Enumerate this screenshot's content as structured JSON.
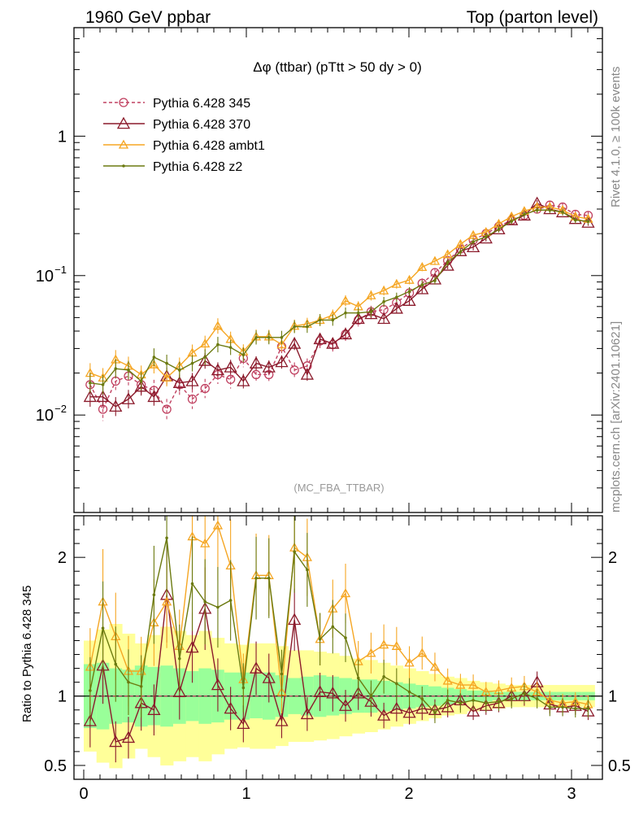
{
  "header": {
    "left": "1960 GeV ppbar",
    "right": "Top (parton level)"
  },
  "side_labels": {
    "rivet": "Rivet 4.1.0, ≥ 100k events",
    "mcplots": "mcplots.cern.ch [arXiv:2401.10621]"
  },
  "chart_data": {
    "type": "line",
    "title": "Δφ (ttbar) (pTtt > 50 dy > 0)",
    "analysis": "(MC_FBA_TTBAR)",
    "xlim": [
      -0.05,
      3.2
    ],
    "x_ticks": [
      "0",
      "1",
      "2",
      "3"
    ],
    "x_tick_values": [
      0,
      1,
      2,
      3
    ],
    "main": {
      "yscale": "log",
      "ylim": [
        0.002,
        6
      ],
      "y_ticks": [
        {
          "label_base": "10",
          "label_exp": "−2",
          "value": 0.01
        },
        {
          "label_base": "10",
          "label_exp": "−1",
          "value": 0.1
        },
        {
          "label_base": "1",
          "label_exp": "",
          "value": 1
        }
      ]
    },
    "ratio": {
      "ylabel": "Ratio to Pythia 6.428 345",
      "ylim": [
        0.4,
        2.3
      ],
      "y_ticks": [
        "0.5",
        "1",
        "2"
      ],
      "y_tick_values": [
        0.5,
        1,
        2
      ],
      "band_inner_half": [
        0.23,
        0.24,
        0.2,
        0.19,
        0.22,
        0.21,
        0.22,
        0.2,
        0.18,
        0.2,
        0.19,
        0.17,
        0.17,
        0.16,
        0.17,
        0.15,
        0.13,
        0.14,
        0.15,
        0.14,
        0.13,
        0.12,
        0.12,
        0.11,
        0.1,
        0.09,
        0.08,
        0.07,
        0.06,
        0.05,
        0.04,
        0.04,
        0.03,
        0.03,
        0.03,
        0.03,
        0.03,
        0.03,
        0.03,
        0.03
      ],
      "band_outer_half": [
        0.4,
        0.48,
        0.52,
        0.45,
        0.38,
        0.44,
        0.5,
        0.47,
        0.44,
        0.47,
        0.42,
        0.38,
        0.37,
        0.38,
        0.38,
        0.36,
        0.33,
        0.33,
        0.32,
        0.31,
        0.29,
        0.27,
        0.26,
        0.24,
        0.22,
        0.2,
        0.18,
        0.16,
        0.14,
        0.13,
        0.11,
        0.1,
        0.09,
        0.08,
        0.08,
        0.08,
        0.08,
        0.08,
        0.08,
        0.08
      ]
    },
    "x": [
      0.0393,
      0.1178,
      0.1963,
      0.2749,
      0.3534,
      0.432,
      0.5105,
      0.589,
      0.6676,
      0.7461,
      0.8247,
      0.9032,
      0.9817,
      1.0603,
      1.1388,
      1.2174,
      1.2959,
      1.3744,
      1.453,
      1.5315,
      1.6101,
      1.6886,
      1.7671,
      1.8457,
      1.9242,
      2.0028,
      2.0813,
      2.1598,
      2.2384,
      2.3169,
      2.3955,
      2.474,
      2.5525,
      2.6311,
      2.7096,
      2.7882,
      2.8667,
      2.9452,
      3.0238,
      3.1023
    ],
    "series": [
      {
        "name": "Pythia 6.428 345",
        "color": "#c04060",
        "dashed": true,
        "marker": "circle",
        "values": [
          0.0165,
          0.011,
          0.0175,
          0.019,
          0.0165,
          0.015,
          0.011,
          0.0165,
          0.013,
          0.0155,
          0.0195,
          0.018,
          0.0255,
          0.0195,
          0.0195,
          0.031,
          0.021,
          0.0225,
          0.034,
          0.032,
          0.038,
          0.048,
          0.055,
          0.057,
          0.064,
          0.075,
          0.088,
          0.105,
          0.128,
          0.155,
          0.18,
          0.2,
          0.225,
          0.25,
          0.27,
          0.3,
          0.32,
          0.31,
          0.275,
          0.27
        ],
        "ratio": [
          1,
          1,
          1,
          1,
          1,
          1,
          1,
          1,
          1,
          1,
          1,
          1,
          1,
          1,
          1,
          1,
          1,
          1,
          1,
          1,
          1,
          1,
          1,
          1,
          1,
          1,
          1,
          1,
          1,
          1,
          1,
          1,
          1,
          1,
          1,
          1,
          1,
          1,
          1,
          1
        ]
      },
      {
        "name": "Pythia 6.428 370",
        "color": "#8b1a2b",
        "dashed": false,
        "marker": "triangle-open",
        "values": [
          0.0135,
          0.0135,
          0.0115,
          0.013,
          0.016,
          0.0135,
          0.019,
          0.017,
          0.0175,
          0.0245,
          0.021,
          0.022,
          0.0175,
          0.0235,
          0.022,
          0.024,
          0.0325,
          0.0195,
          0.035,
          0.0325,
          0.038,
          0.049,
          0.053,
          0.049,
          0.058,
          0.066,
          0.08,
          0.094,
          0.118,
          0.15,
          0.16,
          0.185,
          0.215,
          0.25,
          0.27,
          0.33,
          0.3,
          0.285,
          0.255,
          0.24
        ],
        "ratio": [
          0.82,
          1.22,
          0.67,
          0.7,
          0.95,
          0.9,
          1.73,
          1.03,
          1.35,
          1.63,
          1.08,
          0.91,
          0.8,
          1.2,
          1.13,
          0.82,
          1.55,
          0.87,
          1.03,
          1.02,
          0.93,
          1.02,
          0.96,
          0.86,
          0.91,
          0.88,
          0.91,
          0.9,
          0.92,
          0.97,
          0.89,
          0.93,
          0.95,
          1.0,
          1.0,
          1.1,
          0.94,
          0.92,
          0.93,
          0.89
        ]
      },
      {
        "name": "Pythia 6.428 ambt1",
        "color": "#f5a623",
        "dashed": false,
        "marker": "triangle-open",
        "values": [
          0.02,
          0.0185,
          0.025,
          0.0225,
          0.0195,
          0.023,
          0.0185,
          0.0225,
          0.028,
          0.0325,
          0.0435,
          0.035,
          0.0285,
          0.0365,
          0.0365,
          0.032,
          0.0435,
          0.045,
          0.048,
          0.052,
          0.066,
          0.06,
          0.072,
          0.078,
          0.087,
          0.093,
          0.115,
          0.127,
          0.142,
          0.168,
          0.195,
          0.205,
          0.235,
          0.265,
          0.29,
          0.31,
          0.31,
          0.295,
          0.265,
          0.255
        ],
        "ratio": [
          1.21,
          1.68,
          1.43,
          1.18,
          1.18,
          1.53,
          1.68,
          1.36,
          2.15,
          2.1,
          2.23,
          1.94,
          1.12,
          1.87,
          1.87,
          1.03,
          2.07,
          2.0,
          1.41,
          1.63,
          1.74,
          1.25,
          1.31,
          1.37,
          1.36,
          1.24,
          1.31,
          1.21,
          1.11,
          1.08,
          1.08,
          1.03,
          1.04,
          1.06,
          1.07,
          1.03,
          0.97,
          0.95,
          0.96,
          0.94
        ]
      },
      {
        "name": "Pythia 6.428 z2",
        "color": "#6b7a10",
        "dashed": false,
        "marker": "dot",
        "values": [
          0.017,
          0.0165,
          0.0215,
          0.021,
          0.0175,
          0.026,
          0.0235,
          0.021,
          0.0235,
          0.026,
          0.032,
          0.0305,
          0.027,
          0.036,
          0.036,
          0.036,
          0.043,
          0.043,
          0.048,
          0.048,
          0.054,
          0.054,
          0.055,
          0.065,
          0.07,
          0.077,
          0.086,
          0.092,
          0.124,
          0.148,
          0.175,
          0.19,
          0.215,
          0.245,
          0.275,
          0.295,
          0.295,
          0.285,
          0.25,
          0.245
        ],
        "ratio": [
          1.04,
          1.49,
          1.23,
          1.1,
          1.07,
          1.73,
          2.14,
          1.27,
          1.81,
          1.68,
          1.64,
          1.69,
          1.06,
          1.85,
          1.85,
          1.16,
          2.04,
          1.91,
          1.41,
          1.5,
          1.42,
          1.13,
          1.0,
          1.14,
          1.09,
          1.03,
          0.98,
          0.88,
          0.97,
          0.95,
          0.97,
          0.95,
          0.96,
          0.98,
          1.02,
          0.98,
          0.92,
          0.92,
          0.91,
          0.91
        ]
      }
    ]
  }
}
